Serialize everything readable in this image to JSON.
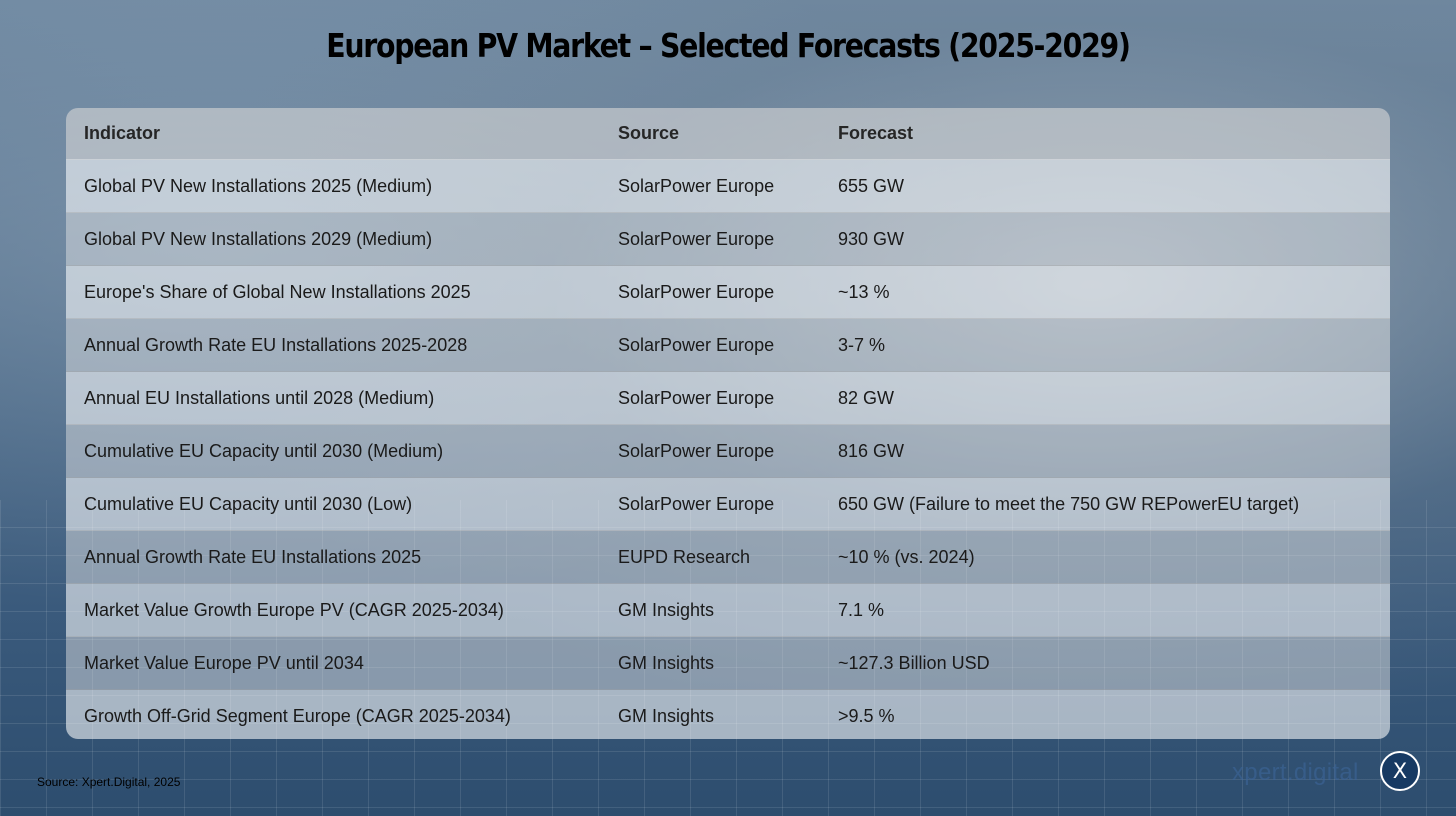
{
  "title": "European PV Market – Selected Forecasts (2025-2029)",
  "table": {
    "headers": [
      "Indicator",
      "Source",
      "Forecast"
    ],
    "rows": [
      [
        "Global PV New Installations 2025 (Medium)",
        "SolarPower Europe",
        "655 GW"
      ],
      [
        "Global PV New Installations 2029 (Medium)",
        "SolarPower Europe",
        "930 GW"
      ],
      [
        "Europe's Share of Global New Installations 2025",
        "SolarPower Europe",
        "~13 %"
      ],
      [
        "Annual Growth Rate EU Installations 2025-2028",
        "SolarPower Europe",
        "3-7 %"
      ],
      [
        "Annual EU Installations until 2028 (Medium)",
        "SolarPower Europe",
        "82 GW"
      ],
      [
        "Cumulative EU Capacity until 2030 (Medium)",
        "SolarPower Europe",
        "816 GW"
      ],
      [
        "Cumulative EU Capacity until 2030 (Low)",
        "SolarPower Europe",
        "650 GW (Failure to meet the 750 GW REPowerEU target)"
      ],
      [
        "Annual Growth Rate EU Installations 2025",
        "EUPD Research",
        "~10 % (vs. 2024)"
      ],
      [
        "Market Value Growth Europe PV (CAGR 2025-2034)",
        "GM Insights",
        "7.1 %"
      ],
      [
        "Market Value Europe PV until 2034",
        "GM Insights",
        "~127.3 Billion USD"
      ],
      [
        "Growth Off-Grid Segment Europe (CAGR 2025-2034)",
        "GM Insights",
        ">9.5 %"
      ]
    ]
  },
  "footer": {
    "source": "Source: Xpert.Digital, 2025",
    "brand": "xpert.digital",
    "badge": "X"
  },
  "colors": {
    "badge_background": "#173a63",
    "brand_text": "#3c6496"
  }
}
